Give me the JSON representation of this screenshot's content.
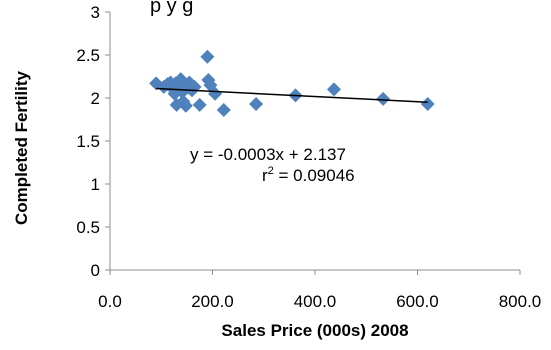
{
  "chart_data": {
    "type": "scatter",
    "title_fragment": "p        y       g",
    "xlabel": "Sales Price (000s) 2008",
    "ylabel": "Completed Fertility",
    "xlim": [
      0,
      800
    ],
    "ylim": [
      0,
      3
    ],
    "x_ticks": [
      0,
      200,
      400,
      600,
      800
    ],
    "x_tick_labels": [
      "0.0",
      "200.0",
      "400.0",
      "600.0",
      "800.0"
    ],
    "y_ticks": [
      0,
      0.5,
      1,
      1.5,
      2,
      2.5,
      3
    ],
    "y_tick_labels": [
      "0",
      "0.5",
      "1",
      "1.5",
      "2",
      "2.5",
      "3"
    ],
    "grid": {
      "horizontal": false,
      "vertical": false
    },
    "marker_color": "#4f81bd",
    "trendline_color": "#000000",
    "trendline": {
      "slope": -0.0003,
      "intercept": 2.137
    },
    "equation_label": "y = -0.0003x + 2.137",
    "r2_label_prefix": "r",
    "r2_label_sup": "2",
    "r2_label_value": " = 0.09046",
    "points": [
      {
        "x": 90,
        "y": 2.17
      },
      {
        "x": 105,
        "y": 2.13
      },
      {
        "x": 112,
        "y": 2.16
      },
      {
        "x": 118,
        "y": 2.18
      },
      {
        "x": 122,
        "y": 2.11
      },
      {
        "x": 126,
        "y": 2.05
      },
      {
        "x": 128,
        "y": 2.17
      },
      {
        "x": 130,
        "y": 1.92
      },
      {
        "x": 134,
        "y": 2.13
      },
      {
        "x": 138,
        "y": 2.22
      },
      {
        "x": 141,
        "y": 2.07
      },
      {
        "x": 143,
        "y": 1.96
      },
      {
        "x": 146,
        "y": 2.16
      },
      {
        "x": 148,
        "y": 1.91
      },
      {
        "x": 151,
        "y": 2.12
      },
      {
        "x": 155,
        "y": 2.18
      },
      {
        "x": 160,
        "y": 2.09
      },
      {
        "x": 165,
        "y": 2.13
      },
      {
        "x": 175,
        "y": 1.92
      },
      {
        "x": 190,
        "y": 2.48
      },
      {
        "x": 192,
        "y": 2.21
      },
      {
        "x": 196,
        "y": 2.15
      },
      {
        "x": 205,
        "y": 2.05
      },
      {
        "x": 222,
        "y": 1.86
      },
      {
        "x": 285,
        "y": 1.93
      },
      {
        "x": 362,
        "y": 2.03
      },
      {
        "x": 437,
        "y": 2.1
      },
      {
        "x": 533,
        "y": 1.99
      },
      {
        "x": 620,
        "y": 1.93
      }
    ]
  }
}
